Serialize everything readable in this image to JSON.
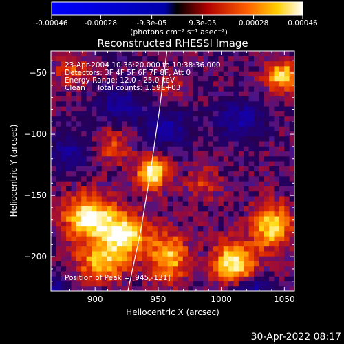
{
  "chart_data": {
    "type": "heatmap",
    "title": "Reconstructed RHESSI Image",
    "xlabel": "Heliocentric X (arcsec)",
    "ylabel": "Heliocentric Y (arcsec)",
    "xlim": [
      865,
      1058
    ],
    "ylim": [
      -228,
      -32
    ],
    "x_ticks": [
      900,
      950,
      1000,
      1050
    ],
    "y_ticks": [
      -50,
      -100,
      -150,
      -200
    ],
    "colorbar": {
      "range": [
        -0.00046,
        0.00046
      ],
      "ticks": [
        -0.00046,
        -0.00028,
        -9.3e-05,
        9.3e-05,
        0.00028,
        0.00046
      ],
      "tick_labels": [
        "-0.00046",
        "-0.00028",
        "-9.3e-05",
        "9.3e-05",
        "0.00028",
        "0.00046"
      ],
      "unit_label": "(photons cm⁻² s⁻¹ asec⁻²)",
      "colormap": [
        "#0000ff",
        "#000000",
        "#ff0000",
        "#ffffff"
      ]
    },
    "annotations": [
      "23-Apr-2004 10:36:20.000 to 10:38:36.000",
      "Detectors: 3F 4F 5F 6F 7F 8F, Att 0",
      "Energy Range: 12.0 - 25.0 keV",
      "Clean     Total counts: 1.59E+03"
    ],
    "peak_label": "Position of Peak = [945,-131]",
    "peak": [
      945,
      -131
    ],
    "limb_curve": [
      [
        926,
        -228
      ],
      [
        936,
        -180
      ],
      [
        944,
        -130
      ],
      [
        951,
        -80
      ],
      [
        957,
        -32
      ]
    ],
    "sources": [
      {
        "x": 945,
        "y": -131,
        "amp": 0.00046,
        "sx": 8,
        "sy": 9
      },
      {
        "x": 895,
        "y": -168,
        "amp": 0.00042,
        "sx": 14,
        "sy": 13
      },
      {
        "x": 922,
        "y": -182,
        "amp": 0.00043,
        "sx": 13,
        "sy": 12
      },
      {
        "x": 905,
        "y": -205,
        "amp": 0.0003,
        "sx": 14,
        "sy": 10
      },
      {
        "x": 958,
        "y": -200,
        "amp": 0.00033,
        "sx": 11,
        "sy": 14
      },
      {
        "x": 1010,
        "y": -205,
        "amp": 0.00044,
        "sx": 11,
        "sy": 12
      },
      {
        "x": 1040,
        "y": -175,
        "amp": 0.00036,
        "sx": 11,
        "sy": 13
      },
      {
        "x": 1048,
        "y": -52,
        "amp": 0.00038,
        "sx": 9,
        "sy": 8
      },
      {
        "x": 882,
        "y": -48,
        "amp": 0.00018,
        "sx": 10,
        "sy": 8
      },
      {
        "x": 915,
        "y": -110,
        "amp": 0.00016,
        "sx": 10,
        "sy": 10
      },
      {
        "x": 985,
        "y": -140,
        "amp": 0.00014,
        "sx": 10,
        "sy": 10
      },
      {
        "x": 960,
        "y": -62,
        "amp": 0.00012,
        "sx": 8,
        "sy": 8
      },
      {
        "x": 1015,
        "y": -88,
        "amp": -0.00025,
        "sx": 12,
        "sy": 10
      },
      {
        "x": 958,
        "y": -95,
        "amp": -0.00022,
        "sx": 14,
        "sy": 10
      },
      {
        "x": 920,
        "y": -75,
        "amp": -0.00024,
        "sx": 12,
        "sy": 9
      },
      {
        "x": 880,
        "y": -115,
        "amp": -0.0002,
        "sx": 10,
        "sy": 10
      },
      {
        "x": 1025,
        "y": -225,
        "amp": -0.00022,
        "sx": 12,
        "sy": 6
      },
      {
        "x": 870,
        "y": -225,
        "amp": -0.00018,
        "sx": 8,
        "sy": 6
      }
    ]
  },
  "footer": {
    "timestamp": "30-Apr-2022 08:17"
  }
}
